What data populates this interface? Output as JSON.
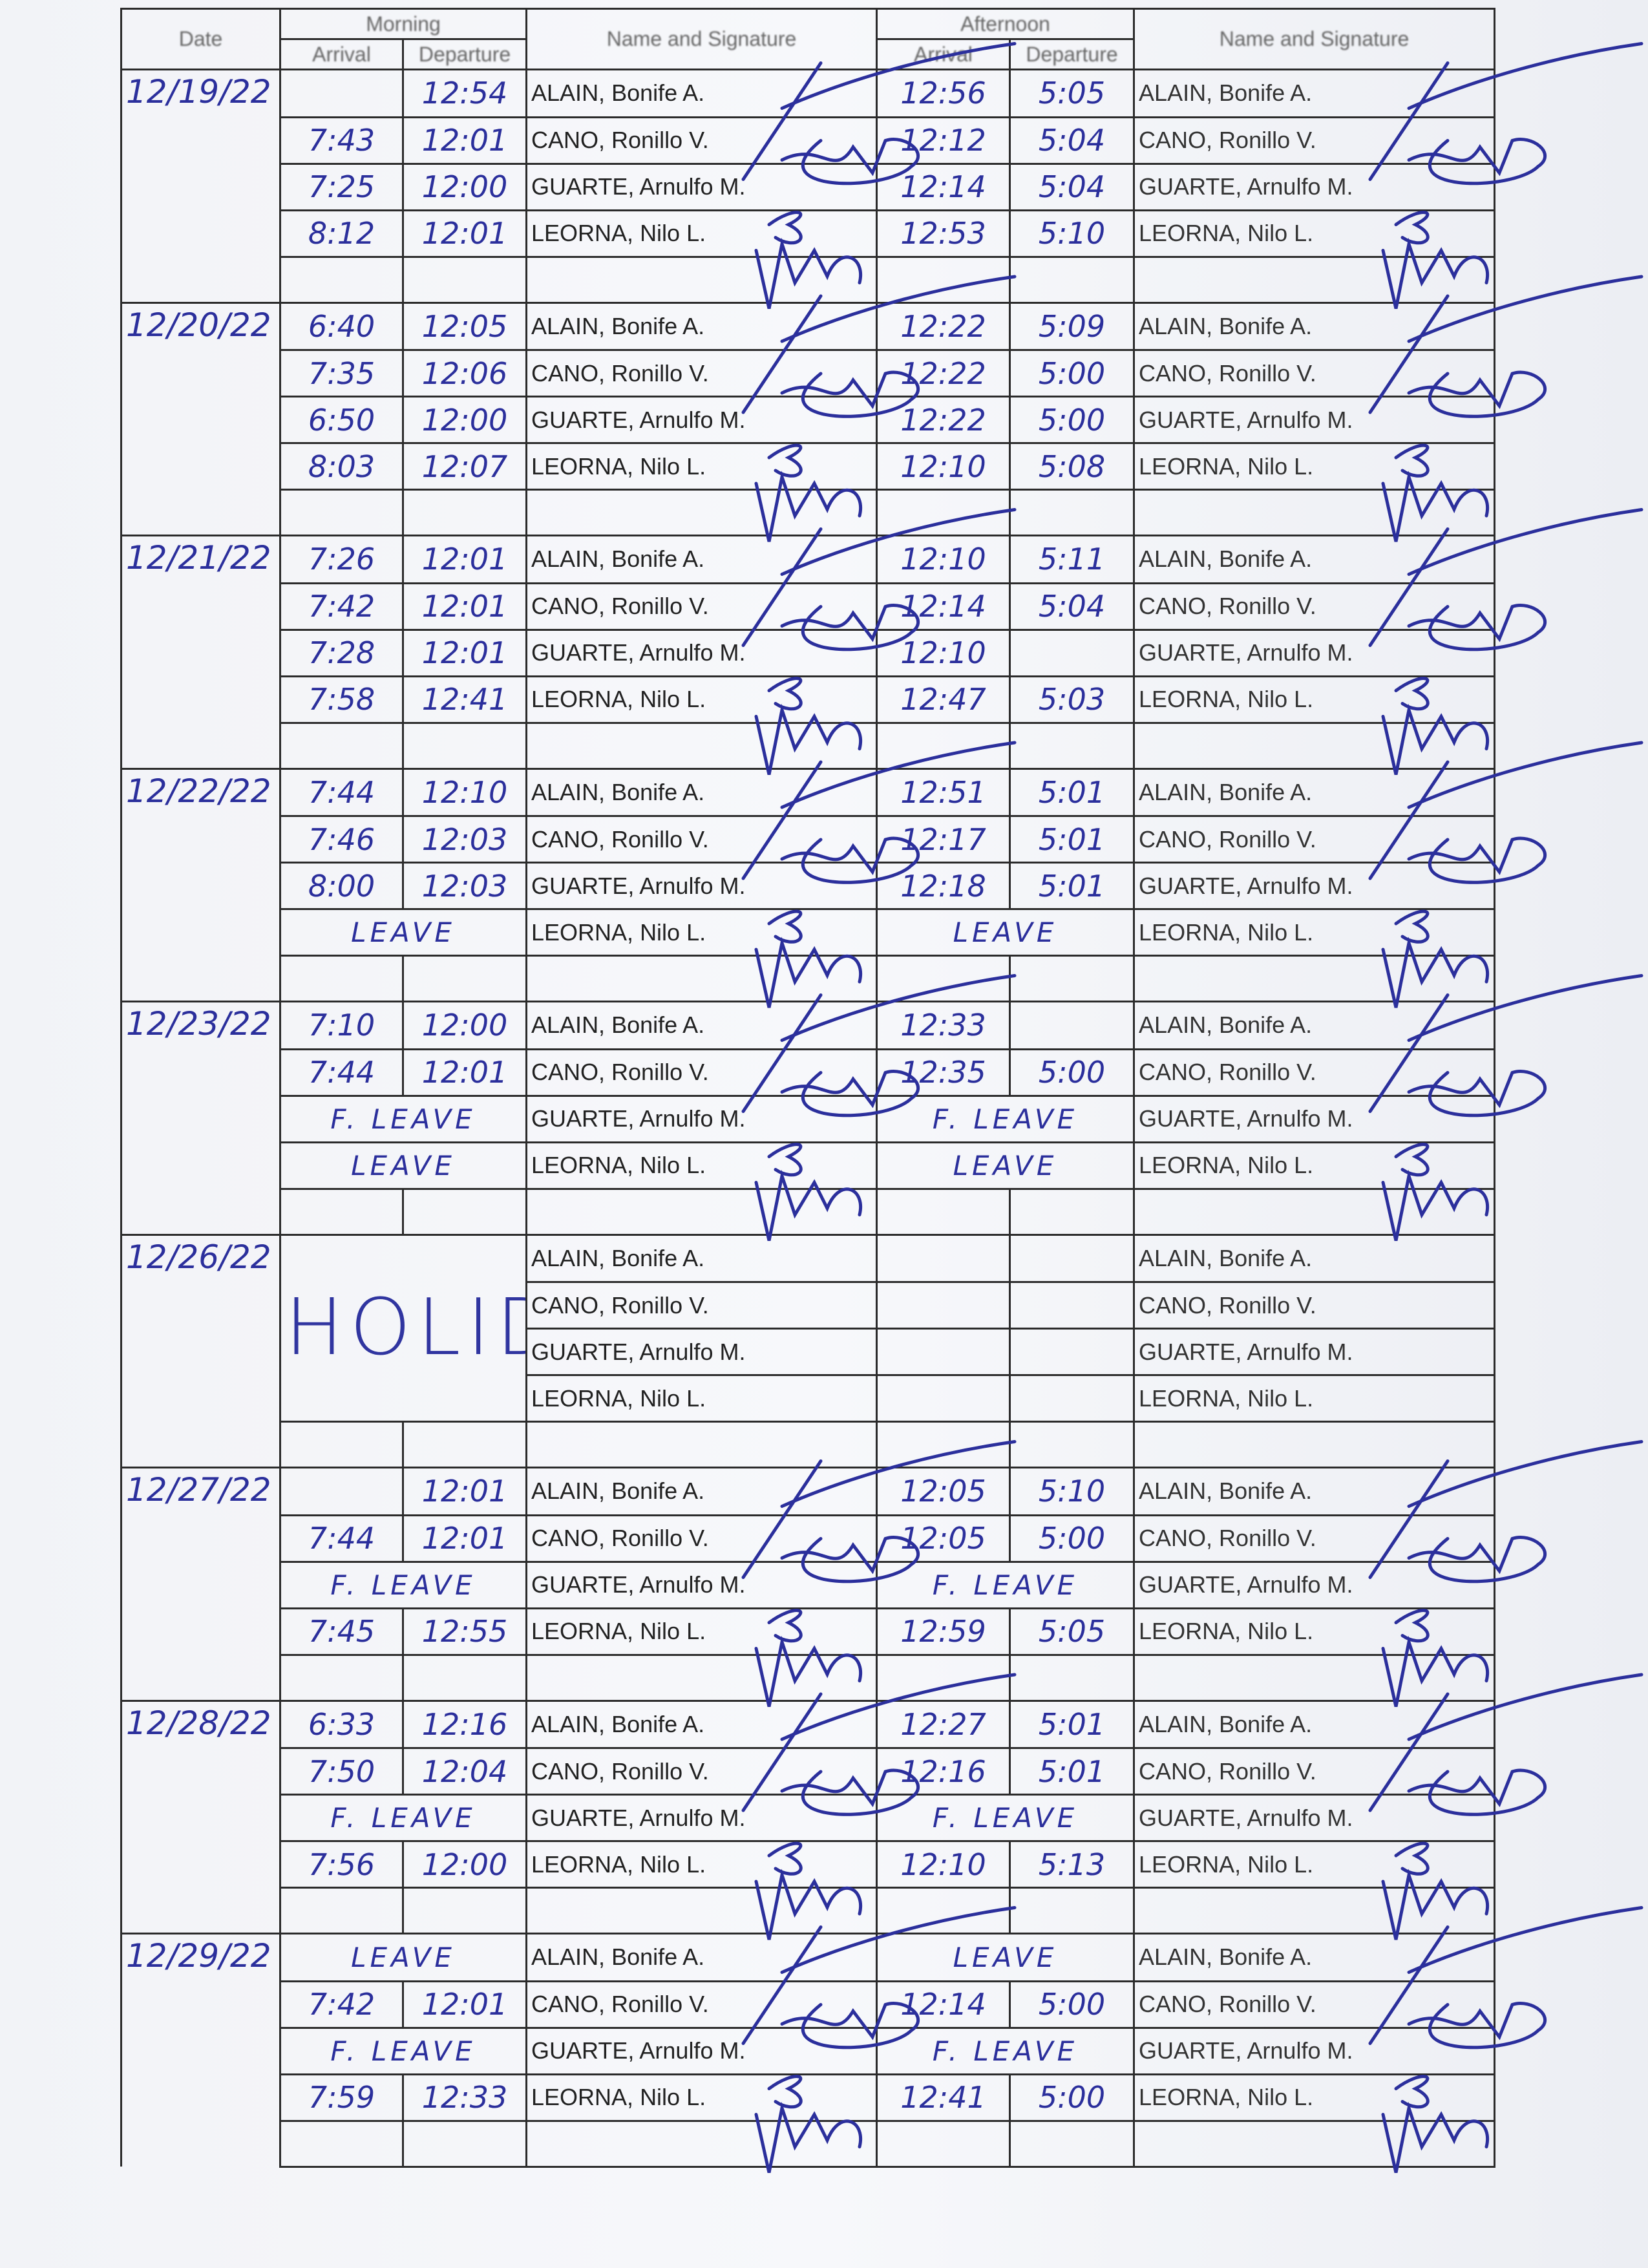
{
  "header": {
    "date": "Date",
    "morning": "Morning",
    "afternoon": "Afternoon",
    "arrival": "Arrival",
    "departure": "Departure",
    "name_signature": "Name and Signature"
  },
  "employees": [
    "ALAIN, Bonife A.",
    "CANO, Ronillo V.",
    "GUARTE, Arnulfo M.",
    "LEORNA, Nilo L."
  ],
  "ink_color": "#2b2f9c",
  "days": [
    {
      "date": "12/19/22",
      "rows": [
        {
          "am_in": "",
          "am_out": "12:54",
          "pm_in": "12:56",
          "pm_out": "5:05"
        },
        {
          "am_in": "7:43",
          "am_out": "12:01",
          "pm_in": "12:12",
          "pm_out": "5:04"
        },
        {
          "am_in": "7:25",
          "am_out": "12:00",
          "pm_in": "12:14",
          "pm_out": "5:04"
        },
        {
          "am_in": "8:12",
          "am_out": "12:01",
          "pm_in": "12:53",
          "pm_out": "5:10"
        }
      ]
    },
    {
      "date": "12/20/22",
      "rows": [
        {
          "am_in": "6:40",
          "am_out": "12:05",
          "pm_in": "12:22",
          "pm_out": "5:09"
        },
        {
          "am_in": "7:35",
          "am_out": "12:06",
          "pm_in": "12:22",
          "pm_out": "5:00"
        },
        {
          "am_in": "6:50",
          "am_out": "12:00",
          "pm_in": "12:22",
          "pm_out": "5:00"
        },
        {
          "am_in": "8:03",
          "am_out": "12:07",
          "pm_in": "12:10",
          "pm_out": "5:08"
        }
      ]
    },
    {
      "date": "12/21/22",
      "rows": [
        {
          "am_in": "7:26",
          "am_out": "12:01",
          "pm_in": "12:10",
          "pm_out": "5:11"
        },
        {
          "am_in": "7:42",
          "am_out": "12:01",
          "pm_in": "12:14",
          "pm_out": "5:04"
        },
        {
          "am_in": "7:28",
          "am_out": "12:01",
          "pm_in": "12:10",
          "pm_out": ""
        },
        {
          "am_in": "7:58",
          "am_out": "12:41",
          "pm_in": "12:47",
          "pm_out": "5:03"
        }
      ]
    },
    {
      "date": "12/22/22",
      "rows": [
        {
          "am_in": "7:44",
          "am_out": "12:10",
          "pm_in": "12:51",
          "pm_out": "5:01"
        },
        {
          "am_in": "7:46",
          "am_out": "12:03",
          "pm_in": "12:17",
          "pm_out": "5:01"
        },
        {
          "am_in": "8:00",
          "am_out": "12:03",
          "pm_in": "12:18",
          "pm_out": "5:01"
        },
        {
          "am_note": "LEAVE",
          "pm_note": "LEAVE"
        }
      ]
    },
    {
      "date": "12/23/22",
      "rows": [
        {
          "am_in": "7:10",
          "am_out": "12:00",
          "pm_in": "12:33",
          "pm_out": ""
        },
        {
          "am_in": "7:44",
          "am_out": "12:01",
          "pm_in": "12:35",
          "pm_out": "5:00"
        },
        {
          "am_note": "F. LEAVE",
          "pm_note": "F. LEAVE"
        },
        {
          "am_note": "LEAVE",
          "pm_note": "LEAVE"
        }
      ]
    },
    {
      "date": "12/26/22",
      "holiday": "HOLIDAY",
      "rows": [
        {
          "pm_in": "",
          "pm_out": ""
        },
        {
          "pm_in": "",
          "pm_out": ""
        },
        {
          "pm_in": "",
          "pm_out": ""
        },
        {
          "pm_in": "",
          "pm_out": ""
        }
      ]
    },
    {
      "date": "12/27/22",
      "rows": [
        {
          "am_in": "",
          "am_out": "12:01",
          "pm_in": "12:05",
          "pm_out": "5:10"
        },
        {
          "am_in": "7:44",
          "am_out": "12:01",
          "pm_in": "12:05",
          "pm_out": "5:00"
        },
        {
          "am_note": "F. LEAVE",
          "pm_note": "F. LEAVE"
        },
        {
          "am_in": "7:45",
          "am_out": "12:55",
          "pm_in": "12:59",
          "pm_out": "5:05"
        }
      ]
    },
    {
      "date": "12/28/22",
      "rows": [
        {
          "am_in": "6:33",
          "am_out": "12:16",
          "pm_in": "12:27",
          "pm_out": "5:01"
        },
        {
          "am_in": "7:50",
          "am_out": "12:04",
          "pm_in": "12:16",
          "pm_out": "5:01"
        },
        {
          "am_note": "F. LEAVE",
          "pm_note": "F. LEAVE"
        },
        {
          "am_in": "7:56",
          "am_out": "12:00",
          "pm_in": "12:10",
          "pm_out": "5:13"
        }
      ]
    },
    {
      "date": "12/29/22",
      "rows": [
        {
          "am_note": "LEAVE",
          "pm_note": "LEAVE"
        },
        {
          "am_in": "7:42",
          "am_out": "12:01",
          "pm_in": "12:14",
          "pm_out": "5:00"
        },
        {
          "am_note": "F. LEAVE",
          "pm_note": "F. LEAVE"
        },
        {
          "am_in": "7:59",
          "am_out": "12:33",
          "pm_in": "12:41",
          "pm_out": "5:00"
        }
      ]
    }
  ]
}
